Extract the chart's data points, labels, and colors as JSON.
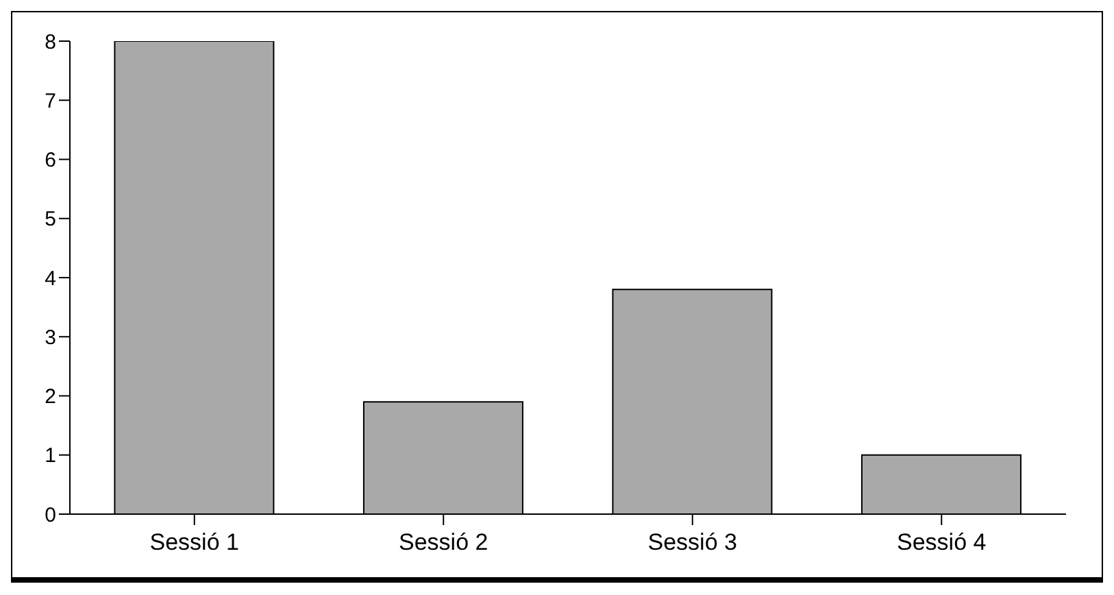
{
  "chart_data": {
    "type": "bar",
    "categories": [
      "Sessió 1",
      "Sessió 2",
      "Sessió 3",
      "Sessió 4"
    ],
    "values": [
      8,
      1.9,
      3.8,
      1.0
    ],
    "color": "#a9a9a9",
    "ylim": [
      0,
      8
    ],
    "yticks": [
      0,
      1,
      2,
      3,
      4,
      5,
      6,
      7,
      8
    ],
    "grid": false,
    "legend": false
  }
}
